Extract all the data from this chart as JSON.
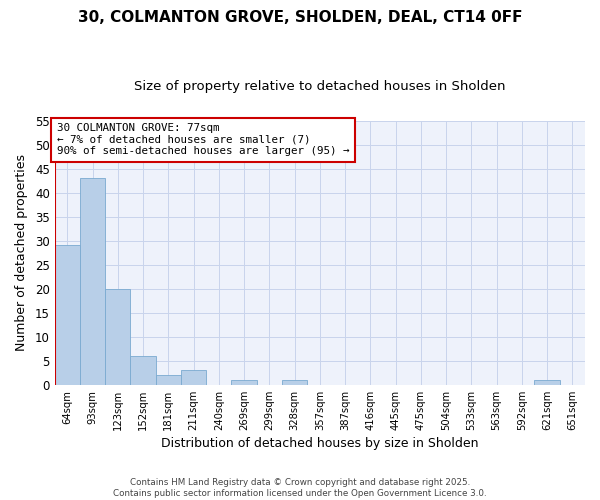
{
  "title": "30, COLMANTON GROVE, SHOLDEN, DEAL, CT14 0FF",
  "subtitle": "Size of property relative to detached houses in Sholden",
  "xlabel": "Distribution of detached houses by size in Sholden",
  "ylabel": "Number of detached properties",
  "bins": [
    "64sqm",
    "93sqm",
    "123sqm",
    "152sqm",
    "181sqm",
    "211sqm",
    "240sqm",
    "269sqm",
    "299sqm",
    "328sqm",
    "357sqm",
    "387sqm",
    "416sqm",
    "445sqm",
    "475sqm",
    "504sqm",
    "533sqm",
    "563sqm",
    "592sqm",
    "621sqm",
    "651sqm"
  ],
  "values": [
    29,
    43,
    20,
    6,
    2,
    3,
    0,
    1,
    0,
    1,
    0,
    0,
    0,
    0,
    0,
    0,
    0,
    0,
    0,
    1,
    0
  ],
  "bar_color": "#b8cfe8",
  "bar_edge_color": "#7aaad0",
  "annotation_text": "30 COLMANTON GROVE: 77sqm\n← 7% of detached houses are smaller (7)\n90% of semi-detached houses are larger (95) →",
  "annotation_box_color": "white",
  "annotation_box_edge_color": "#cc0000",
  "red_line_color": "#cc0000",
  "ylim": [
    0,
    55
  ],
  "yticks": [
    0,
    5,
    10,
    15,
    20,
    25,
    30,
    35,
    40,
    45,
    50,
    55
  ],
  "footer": "Contains HM Land Registry data © Crown copyright and database right 2025.\nContains public sector information licensed under the Open Government Licence 3.0.",
  "fig_width": 6.0,
  "fig_height": 5.0,
  "plot_bg_color": "#eef2fb",
  "grid_color": "#c8d4ec",
  "title_fontsize": 11,
  "subtitle_fontsize": 9.5
}
